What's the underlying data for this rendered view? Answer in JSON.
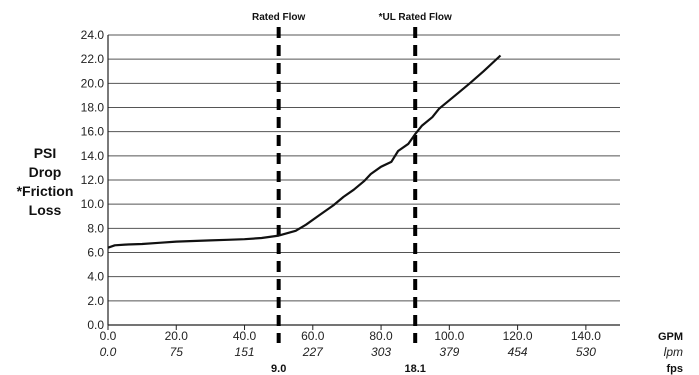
{
  "chart_data": {
    "type": "line",
    "ylabel_lines": [
      "PSI",
      "Drop",
      "*Friction",
      "Loss"
    ],
    "ylim": [
      0,
      24
    ],
    "yticks": [
      "0.0",
      "2.0",
      "4.0",
      "6.0",
      "8.0",
      "10.0",
      "12.0",
      "14.0",
      "16.0",
      "18.0",
      "20.0",
      "22.0",
      "24.0"
    ],
    "xlim": [
      0,
      150
    ],
    "xticks": [
      0,
      20,
      40,
      60,
      80,
      100,
      120,
      140
    ],
    "xtick_labels_gpm": [
      "0.0",
      "20.0",
      "40.0",
      "60.0",
      "80.0",
      "100.0",
      "120.0",
      "140.0"
    ],
    "xtick_labels_lpm": [
      "0.0",
      "75",
      "151",
      "227",
      "303",
      "379",
      "454",
      "530"
    ],
    "unit_labels": [
      "GPM",
      "lpm",
      "fps"
    ],
    "grid": "horizontal",
    "reference_lines": [
      {
        "label": "Rated Flow",
        "x": 50,
        "fps": "9.0"
      },
      {
        "label": "*UL Rated Flow",
        "x": 90,
        "fps": "18.1"
      }
    ],
    "series": [
      {
        "x": [
          0,
          2,
          5,
          10,
          15,
          20,
          25,
          30,
          35,
          40,
          45,
          50,
          55,
          58,
          62,
          66,
          69,
          72,
          75,
          77,
          80,
          83,
          85,
          88,
          90,
          92,
          95,
          97,
          100,
          103,
          106,
          110,
          115
        ],
        "values": [
          6.4,
          6.6,
          6.65,
          6.7,
          6.8,
          6.9,
          6.95,
          7.0,
          7.05,
          7.1,
          7.2,
          7.4,
          7.8,
          8.3,
          9.1,
          9.9,
          10.6,
          11.2,
          11.9,
          12.5,
          13.1,
          13.5,
          14.4,
          15.0,
          15.8,
          16.5,
          17.2,
          17.9,
          18.6,
          19.3,
          20.0,
          21.0,
          22.3
        ]
      }
    ]
  }
}
